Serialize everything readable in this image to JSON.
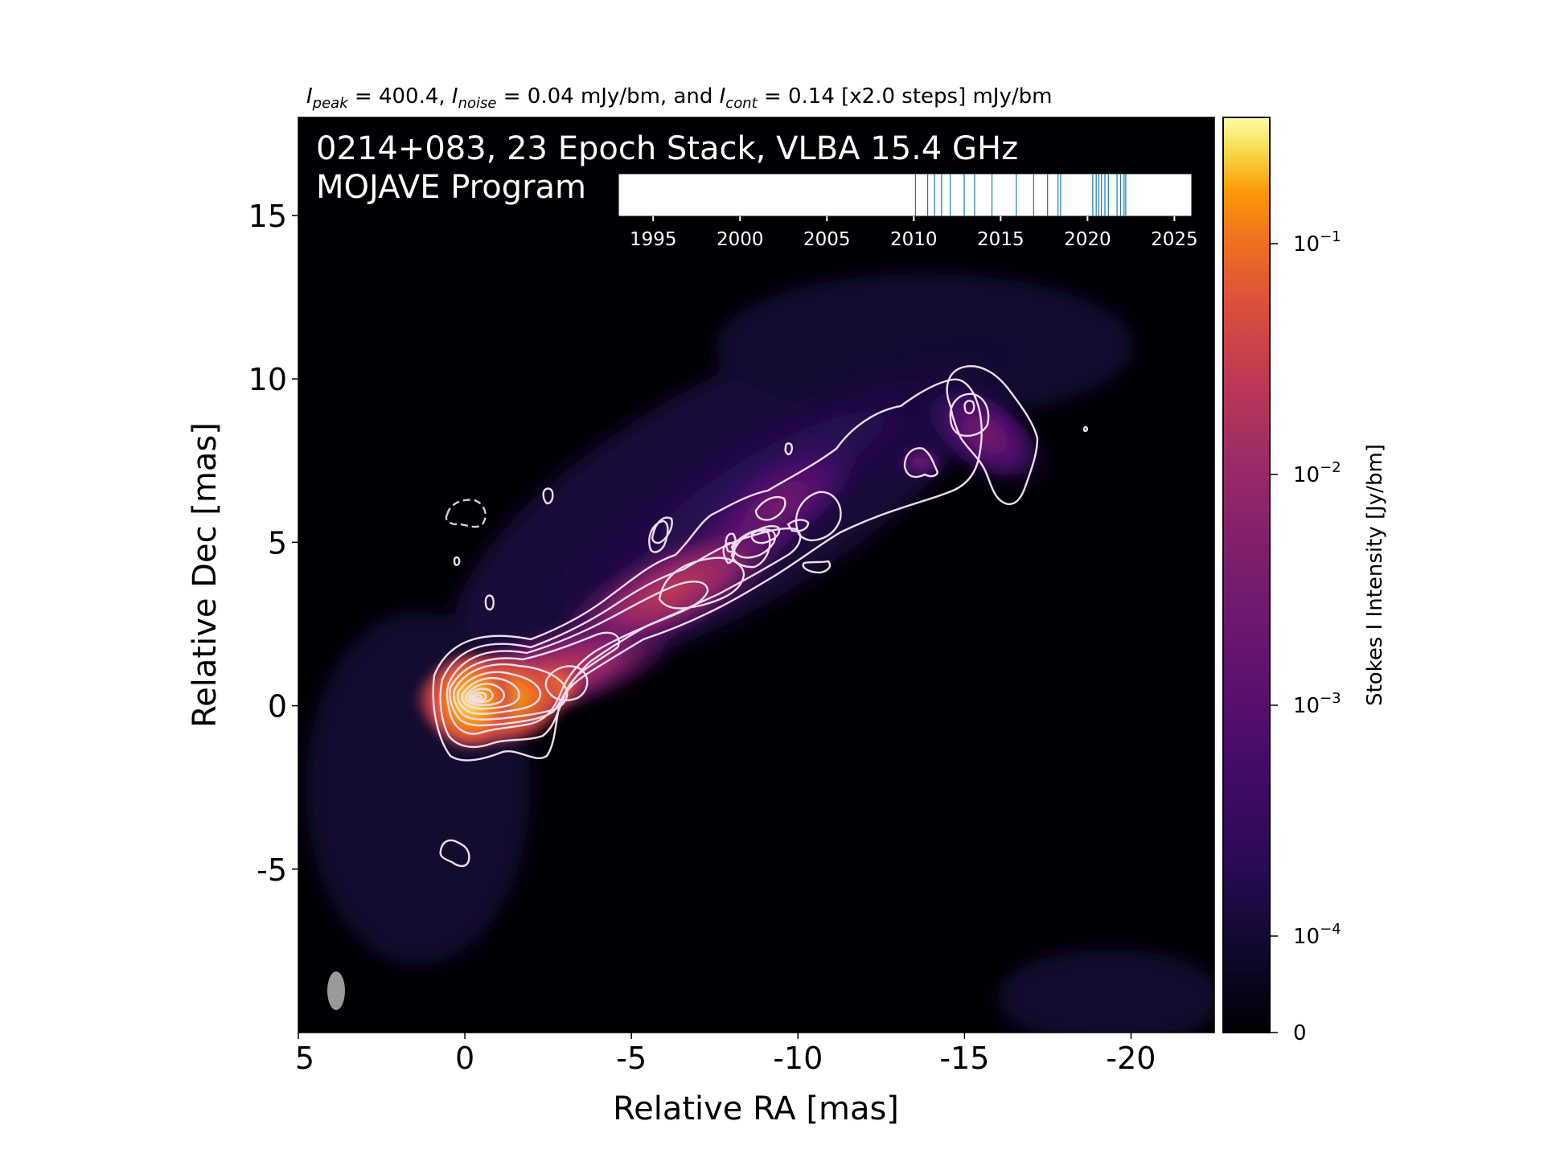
{
  "chart_data": {
    "type": "heatmap",
    "header": {
      "peak_symbol": "I",
      "peak_sub": "peak",
      "peak_text": " = 400.4, ",
      "noise_symbol": "I",
      "noise_sub": "noise",
      "noise_text": " = 0.04 mJy/bm, and ",
      "cont_symbol": "I",
      "cont_sub": "cont",
      "cont_text": " = 0.14 [x2.0 steps] mJy/bm"
    },
    "title_line1": "0214+083, 23 Epoch Stack, VLBA 15.4 GHz",
    "title_line2": "MOJAVE Program",
    "xlabel": "Relative RA [mas]",
    "ylabel": "Relative Dec [mas]",
    "xlim": [
      5,
      -22.5
    ],
    "ylim": [
      -10,
      18
    ],
    "xticks": [
      5,
      0,
      -5,
      -10,
      -15,
      -20
    ],
    "xtick_labels": [
      "5",
      "0",
      "-5",
      "-10",
      "-15",
      "-20"
    ],
    "yticks": [
      15,
      10,
      5,
      0,
      -5
    ],
    "ytick_labels": [
      "15",
      "10",
      "5",
      "0",
      "-5"
    ],
    "colorbar": {
      "label": "Stokes I Intensity [Jy/bm]",
      "scale": "log",
      "colormap": "inferno",
      "ticks": [
        {
          "value": 0.1,
          "base": "10",
          "exp": "−1"
        },
        {
          "value": 0.01,
          "base": "10",
          "exp": "−2"
        },
        {
          "value": 0.001,
          "base": "10",
          "exp": "−3"
        },
        {
          "value": 0.0001,
          "base": "10",
          "exp": "−4"
        },
        {
          "value": 0,
          "label": "0"
        }
      ]
    },
    "epoch_timeline": {
      "xlim": [
        1993,
        2026
      ],
      "ticks": [
        1995,
        2000,
        2005,
        2010,
        2015,
        2020,
        2025
      ],
      "tick_labels": [
        "1995",
        "2000",
        "2005",
        "2010",
        "2015",
        "2020",
        "2025"
      ],
      "epochs": [
        2010.1,
        2010.8,
        2011.2,
        2011.6,
        2012.1,
        2012.9,
        2013.5,
        2014.5,
        2015.9,
        2016.9,
        2017.7,
        2018.3,
        2018.45,
        2020.3,
        2020.5,
        2020.65,
        2020.8,
        2021.0,
        2021.2,
        2021.7,
        2021.9,
        2022.1,
        2022.2
      ],
      "line_color": "#1f77b4"
    },
    "beam": {
      "ra": 4.0,
      "dec": -8.8,
      "color": "#9a9a9a"
    },
    "jet_components": [
      {
        "ra": 0.0,
        "dec": 0.0,
        "peak_jy": 0.4004
      },
      {
        "ra": -1.0,
        "dec": 0.1,
        "peak_jy": 0.08
      },
      {
        "ra": -2.8,
        "dec": 0.5,
        "peak_jy": 0.03
      },
      {
        "ra": -5.5,
        "dec": 2.5,
        "peak_jy": 0.004
      },
      {
        "ra": -8.3,
        "dec": 4.8,
        "peak_jy": 0.0015
      },
      {
        "ra": -10.5,
        "dec": 5.7,
        "peak_jy": 0.0012
      },
      {
        "ra": -15.2,
        "dec": 8.9,
        "peak_jy": 0.0008
      },
      {
        "ra": -13.6,
        "dec": 7.2,
        "peak_jy": 0.0004
      }
    ]
  }
}
